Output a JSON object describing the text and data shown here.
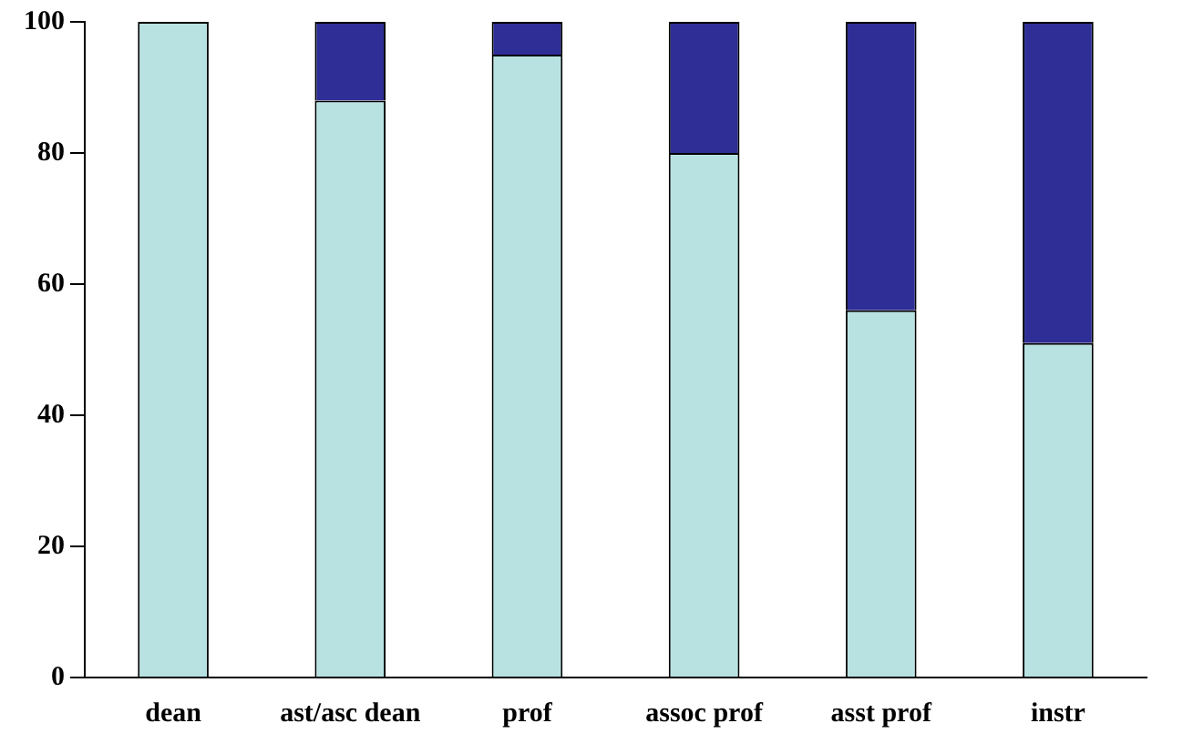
{
  "chart_data": {
    "type": "bar",
    "stacked": true,
    "categories": [
      "dean",
      "ast/asc dean",
      "prof",
      "assoc prof",
      "asst prof",
      "instr"
    ],
    "series": [
      {
        "color": "#b8e2e2",
        "values": [
          100,
          88,
          95,
          80,
          56,
          51
        ]
      },
      {
        "color": "#2e2e96",
        "values": [
          0,
          12,
          5,
          20,
          44,
          49
        ]
      }
    ],
    "ylim": [
      0,
      100
    ],
    "yticks": [
      0,
      20,
      40,
      60,
      80,
      100
    ],
    "grid": false,
    "legend": false
  }
}
